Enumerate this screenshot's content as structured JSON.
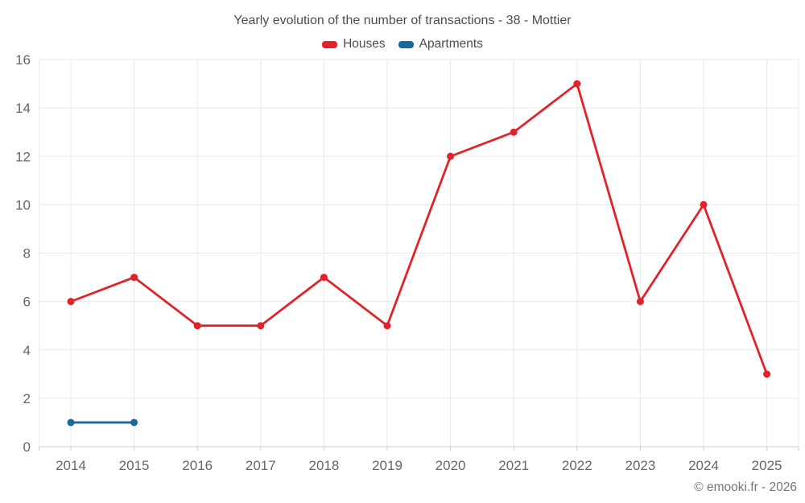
{
  "title": "Yearly evolution of the number of transactions - 38 - Mottier",
  "legend": [
    {
      "label": "Houses",
      "color": "#e12228"
    },
    {
      "label": "Apartments",
      "color": "#17699e"
    }
  ],
  "footer": "© emooki.fr - 2026",
  "colors": {
    "title_text": "#4d4d4d",
    "axis_label_text": "#666666",
    "gridline": "#e9e9e9",
    "axis_line": "#cccccc",
    "background": "#ffffff"
  },
  "chart_data": {
    "type": "line",
    "title": "Yearly evolution of the number of transactions - 38 - Mottier",
    "categories": [
      "2014",
      "2015",
      "2016",
      "2017",
      "2018",
      "2019",
      "2020",
      "2021",
      "2022",
      "2023",
      "2024",
      "2025"
    ],
    "series": [
      {
        "name": "Houses",
        "color": "#e12228",
        "values": [
          6,
          7,
          5,
          5,
          7,
          5,
          12,
          13,
          15,
          6,
          10,
          3
        ]
      },
      {
        "name": "Apartments",
        "color": "#17699e",
        "values": [
          1,
          1,
          null,
          null,
          null,
          null,
          null,
          null,
          null,
          null,
          null,
          null
        ]
      }
    ],
    "xlabel": "",
    "ylabel": "",
    "ylim": [
      0,
      16
    ],
    "ytick_step": 2,
    "grid": true,
    "legend_position": "top"
  }
}
